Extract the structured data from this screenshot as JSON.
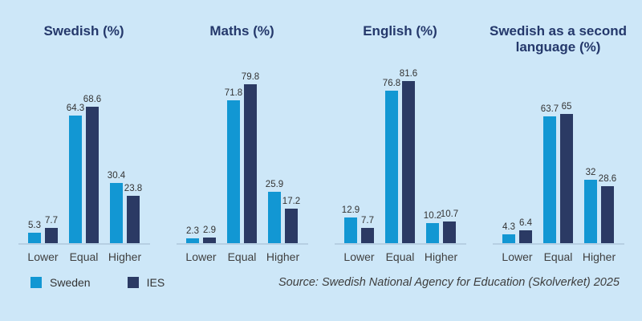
{
  "colors": {
    "background": "#cde7f8",
    "sweden": "#1297d3",
    "ies": "#2b3a64",
    "title": "#24386b",
    "axis_line": "#b6cfe3",
    "text": "#333333"
  },
  "legend": {
    "items": [
      {
        "label": "Sweden",
        "color": "#1297d3"
      },
      {
        "label": "IES",
        "color": "#2b3a64"
      }
    ]
  },
  "source": "Source: Swedish National Agency for Education (Skolverket) 2025",
  "chart_data": [
    {
      "type": "bar",
      "title": "Swedish (%)",
      "categories": [
        "Lower",
        "Equal",
        "Higher"
      ],
      "series": [
        {
          "name": "Sweden",
          "color": "#1297d3",
          "values": [
            5.3,
            64.3,
            30.4
          ]
        },
        {
          "name": "IES",
          "color": "#2b3a64",
          "values": [
            7.7,
            68.6,
            23.8
          ]
        }
      ],
      "ylim": [
        0,
        100
      ],
      "grid": false,
      "value_labels": true
    },
    {
      "type": "bar",
      "title": "Maths (%)",
      "categories": [
        "Lower",
        "Equal",
        "Higher"
      ],
      "series": [
        {
          "name": "Sweden",
          "color": "#1297d3",
          "values": [
            2.3,
            71.8,
            25.9
          ]
        },
        {
          "name": "IES",
          "color": "#2b3a64",
          "values": [
            2.9,
            79.8,
            17.2
          ]
        }
      ],
      "ylim": [
        0,
        100
      ],
      "grid": false,
      "value_labels": true
    },
    {
      "type": "bar",
      "title": "English (%)",
      "categories": [
        "Lower",
        "Equal",
        "Higher"
      ],
      "series": [
        {
          "name": "Sweden",
          "color": "#1297d3",
          "values": [
            12.9,
            76.8,
            10.2
          ]
        },
        {
          "name": "IES",
          "color": "#2b3a64",
          "values": [
            7.7,
            81.6,
            10.7
          ]
        }
      ],
      "ylim": [
        0,
        100
      ],
      "grid": false,
      "value_labels": true
    },
    {
      "type": "bar",
      "title": "Swedish as a second language (%)",
      "categories": [
        "Lower",
        "Equal",
        "Higher"
      ],
      "series": [
        {
          "name": "Sweden",
          "color": "#1297d3",
          "values": [
            4.3,
            63.7,
            32
          ]
        },
        {
          "name": "IES",
          "color": "#2b3a64",
          "values": [
            6.4,
            65,
            28.6
          ]
        }
      ],
      "ylim": [
        0,
        100
      ],
      "grid": false,
      "value_labels": true
    }
  ]
}
